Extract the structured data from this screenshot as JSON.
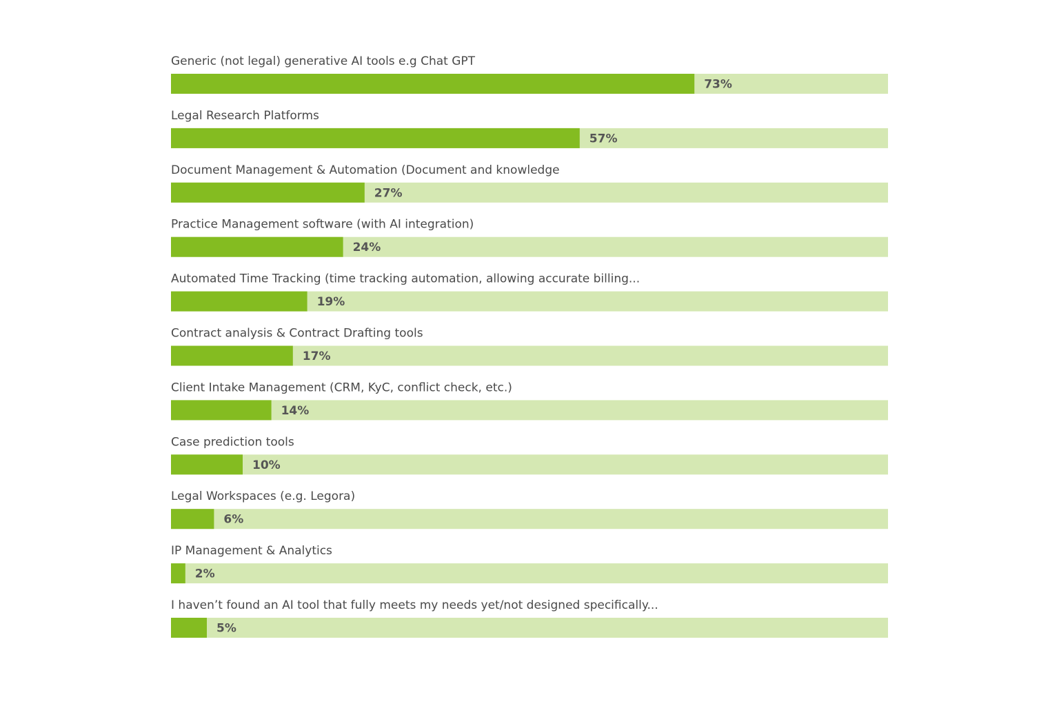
{
  "chart_data": {
    "type": "bar",
    "orientation": "horizontal",
    "value_suffix": "%",
    "xlim": [
      0,
      100
    ],
    "grid": false,
    "colors": {
      "bar": "#84bc21",
      "track": "#d5e8b3",
      "label_text": "#4a4a4a",
      "value_text": "#555555"
    },
    "categories": [
      "Generic (not legal) generative AI tools e.g Chat GPT",
      "Legal Research Platforms",
      "Document Management & Automation (Document and knowledge",
      "Practice Management software (with AI integration)",
      "Automated Time Tracking (time tracking automation, allowing accurate billing...",
      "Contract analysis & Contract Drafting tools",
      "Client Intake Management (CRM, KyC, conflict check, etc.)",
      "Case prediction tools",
      "Legal Workspaces (e.g. Legora)",
      "IP Management & Analytics",
      "I haven’t found an AI tool that fully meets my needs yet/not designed specifically..."
    ],
    "values": [
      73,
      57,
      27,
      24,
      19,
      17,
      14,
      10,
      6,
      2,
      5
    ],
    "value_labels": [
      "73%",
      "57%",
      "27%",
      "24%",
      "19%",
      "17%",
      "14%",
      "10%",
      "6%",
      "2%",
      "5%"
    ]
  }
}
